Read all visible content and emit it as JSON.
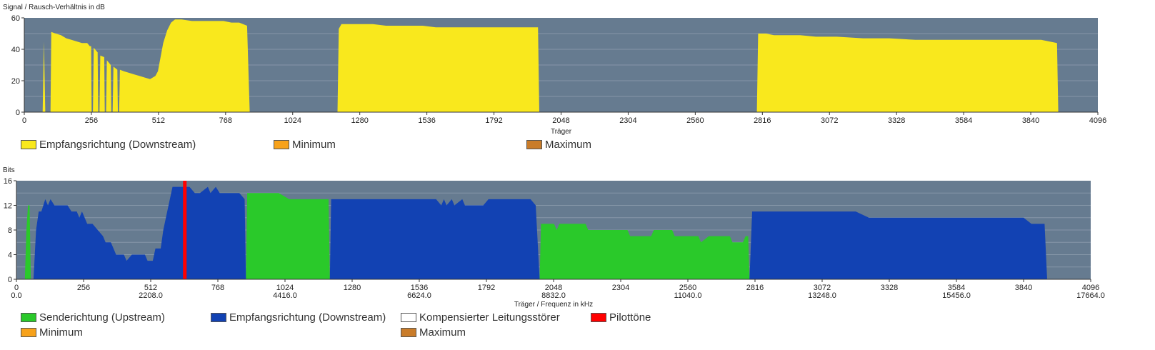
{
  "colors": {
    "plot_bg": "#667b90",
    "grid": "#8596a8",
    "snr": "#f9e81d",
    "upstream": "#2ac92a",
    "downstream": "#1242b3",
    "pilot": "#ff0000",
    "minimum": "#f7a21b",
    "maximum": "#c97c2a",
    "compensated": "#ffffff"
  },
  "chart_data": [
    {
      "type": "area",
      "ylabel": "Signal / Rausch-Verhältnis in dB",
      "xlabel": "Träger",
      "xlim": [
        0,
        4096
      ],
      "ylim": [
        0,
        60
      ],
      "yticks": [
        0,
        20,
        40,
        60
      ],
      "xticks": [
        0,
        256,
        512,
        768,
        1024,
        1280,
        1536,
        1792,
        2048,
        2304,
        2560,
        2816,
        3072,
        3328,
        3584,
        3840,
        4096
      ],
      "grid": true,
      "legend": [
        {
          "label": "Empfangsrichtung (Downstream)",
          "color": "#f9e81d"
        },
        {
          "label": "Minimum",
          "color": "#f7a21b"
        },
        {
          "label": "Maximum",
          "color": "#c97c2a"
        }
      ],
      "series": [
        {
          "values": [
            [
              70,
              0
            ],
            [
              75,
              45
            ],
            [
              80,
              0
            ],
            [
              100,
              0
            ],
            [
              103,
              51
            ],
            [
              120,
              50
            ],
            [
              140,
              49
            ],
            [
              160,
              47
            ],
            [
              180,
              46
            ],
            [
              200,
              45
            ],
            [
              220,
              44
            ],
            [
              240,
              44
            ],
            [
              250,
              42
            ],
            [
              255,
              42
            ],
            [
              257,
              0
            ],
            [
              262,
              0
            ],
            [
              265,
              41
            ],
            [
              280,
              38
            ],
            [
              282,
              0
            ],
            [
              287,
              0
            ],
            [
              290,
              36
            ],
            [
              305,
              35
            ],
            [
              307,
              0
            ],
            [
              312,
              0
            ],
            [
              315,
              33
            ],
            [
              330,
              30
            ],
            [
              332,
              0
            ],
            [
              337,
              0
            ],
            [
              340,
              29
            ],
            [
              355,
              27
            ],
            [
              357,
              0
            ],
            [
              362,
              0
            ],
            [
              365,
              27
            ],
            [
              380,
              26
            ],
            [
              400,
              25
            ],
            [
              420,
              24
            ],
            [
              440,
              23
            ],
            [
              460,
              22
            ],
            [
              480,
              21
            ],
            [
              500,
              23
            ],
            [
              510,
              26
            ],
            [
              520,
              35
            ],
            [
              530,
              44
            ],
            [
              545,
              52
            ],
            [
              560,
              57
            ],
            [
              575,
              59
            ],
            [
              600,
              59
            ],
            [
              640,
              58
            ],
            [
              680,
              58
            ],
            [
              700,
              58
            ],
            [
              740,
              58
            ],
            [
              760,
              58
            ],
            [
              790,
              57
            ],
            [
              820,
              57
            ],
            [
              850,
              55
            ],
            [
              860,
              0
            ],
            [
              1195,
              0
            ],
            [
              1200,
              53
            ],
            [
              1210,
              56
            ],
            [
              1250,
              56
            ],
            [
              1290,
              56
            ],
            [
              1330,
              56
            ],
            [
              1380,
              55
            ],
            [
              1420,
              55
            ],
            [
              1470,
              55
            ],
            [
              1520,
              55
            ],
            [
              1570,
              54
            ],
            [
              1620,
              54
            ],
            [
              1670,
              54
            ],
            [
              1720,
              54
            ],
            [
              1780,
              54
            ],
            [
              1840,
              54
            ],
            [
              1890,
              54
            ],
            [
              1960,
              54
            ],
            [
              1965,
              0
            ],
            [
              2795,
              0
            ],
            [
              2800,
              50
            ],
            [
              2830,
              50
            ],
            [
              2860,
              49
            ],
            [
              2900,
              49
            ],
            [
              2960,
              49
            ],
            [
              3020,
              48
            ],
            [
              3100,
              48
            ],
            [
              3200,
              47
            ],
            [
              3300,
              47
            ],
            [
              3400,
              46
            ],
            [
              3500,
              46
            ],
            [
              3600,
              46
            ],
            [
              3700,
              46
            ],
            [
              3800,
              46
            ],
            [
              3880,
              46
            ],
            [
              3940,
              44
            ],
            [
              3945,
              0
            ]
          ]
        }
      ]
    },
    {
      "type": "area",
      "ylabel": "Bits",
      "xlabel": "Träger / Frequenz in kHz",
      "xlim": [
        0,
        4096
      ],
      "ylim": [
        0,
        16
      ],
      "yticks": [
        0,
        4,
        8,
        12,
        16
      ],
      "xticks": [
        0,
        256,
        512,
        768,
        1024,
        1280,
        1536,
        1792,
        2048,
        2304,
        2560,
        2816,
        3072,
        3328,
        3584,
        3840,
        4096
      ],
      "freq_ticks": [
        "0.0",
        "2208.0",
        "4416.0",
        "6624.0",
        "8832.0",
        "11040.0",
        "13248.0",
        "15456.0",
        "17664.0"
      ],
      "grid": true,
      "legend": [
        {
          "label": "Senderichtung (Upstream)",
          "color": "#2ac92a"
        },
        {
          "label": "Empfangsrichtung (Downstream)",
          "color": "#1242b3"
        },
        {
          "label": "Kompensierter Leitungsstörer",
          "color": "#ffffff"
        },
        {
          "label": "Pilottöne",
          "color": "#ff0000"
        },
        {
          "label": "Minimum",
          "color": "#f7a21b"
        },
        {
          "label": "Maximum",
          "color": "#c97c2a"
        }
      ],
      "upstream": [
        [
          32,
          0
        ],
        [
          38,
          8
        ],
        [
          44,
          12
        ],
        [
          50,
          12
        ],
        [
          55,
          0
        ],
        [
          875,
          0
        ],
        [
          880,
          14
        ],
        [
          950,
          14
        ],
        [
          1000,
          14
        ],
        [
          1040,
          13
        ],
        [
          1190,
          13
        ],
        [
          1195,
          0
        ],
        [
          1995,
          0
        ],
        [
          2000,
          9
        ],
        [
          2050,
          9
        ],
        [
          2060,
          8
        ],
        [
          2070,
          9
        ],
        [
          2170,
          9
        ],
        [
          2180,
          8
        ],
        [
          2330,
          8
        ],
        [
          2340,
          7
        ],
        [
          2420,
          7
        ],
        [
          2430,
          8
        ],
        [
          2500,
          8
        ],
        [
          2510,
          7
        ],
        [
          2600,
          7
        ],
        [
          2610,
          6
        ],
        [
          2640,
          7
        ],
        [
          2720,
          7
        ],
        [
          2730,
          6
        ],
        [
          2770,
          6
        ],
        [
          2780,
          7
        ],
        [
          2790,
          7
        ],
        [
          2795,
          0
        ]
      ],
      "downstream": [
        [
          65,
          0
        ],
        [
          75,
          8
        ],
        [
          85,
          11
        ],
        [
          95,
          11
        ],
        [
          110,
          13
        ],
        [
          120,
          12
        ],
        [
          130,
          13
        ],
        [
          145,
          12
        ],
        [
          170,
          12
        ],
        [
          195,
          12
        ],
        [
          210,
          11
        ],
        [
          230,
          11
        ],
        [
          240,
          10
        ],
        [
          250,
          11
        ],
        [
          260,
          10
        ],
        [
          270,
          9
        ],
        [
          290,
          9
        ],
        [
          310,
          8
        ],
        [
          330,
          7
        ],
        [
          340,
          6
        ],
        [
          360,
          6
        ],
        [
          370,
          5
        ],
        [
          380,
          4
        ],
        [
          410,
          4
        ],
        [
          420,
          3
        ],
        [
          440,
          4
        ],
        [
          490,
          4
        ],
        [
          500,
          3
        ],
        [
          520,
          3
        ],
        [
          530,
          5
        ],
        [
          550,
          5
        ],
        [
          560,
          8
        ],
        [
          575,
          11
        ],
        [
          595,
          15
        ],
        [
          620,
          15
        ],
        [
          660,
          15
        ],
        [
          680,
          14
        ],
        [
          700,
          14
        ],
        [
          730,
          15
        ],
        [
          740,
          14
        ],
        [
          760,
          15
        ],
        [
          775,
          14
        ],
        [
          800,
          14
        ],
        [
          850,
          14
        ],
        [
          870,
          13
        ],
        [
          875,
          0
        ],
        [
          1195,
          0
        ],
        [
          1200,
          13
        ],
        [
          1280,
          13
        ],
        [
          1500,
          13
        ],
        [
          1600,
          13
        ],
        [
          1620,
          12
        ],
        [
          1630,
          13
        ],
        [
          1640,
          12
        ],
        [
          1660,
          13
        ],
        [
          1670,
          12
        ],
        [
          1700,
          13
        ],
        [
          1710,
          12
        ],
        [
          1780,
          12
        ],
        [
          1800,
          13
        ],
        [
          1960,
          13
        ],
        [
          1980,
          12
        ],
        [
          1995,
          0
        ],
        [
          2795,
          0
        ],
        [
          2805,
          11
        ],
        [
          2900,
          11
        ],
        [
          3000,
          11
        ],
        [
          3100,
          11
        ],
        [
          3200,
          11
        ],
        [
          3250,
          10
        ],
        [
          3400,
          10
        ],
        [
          3600,
          10
        ],
        [
          3800,
          10
        ],
        [
          3840,
          10
        ],
        [
          3870,
          9
        ],
        [
          3920,
          9
        ],
        [
          3930,
          0
        ]
      ],
      "pilot": [
        642
      ]
    }
  ]
}
